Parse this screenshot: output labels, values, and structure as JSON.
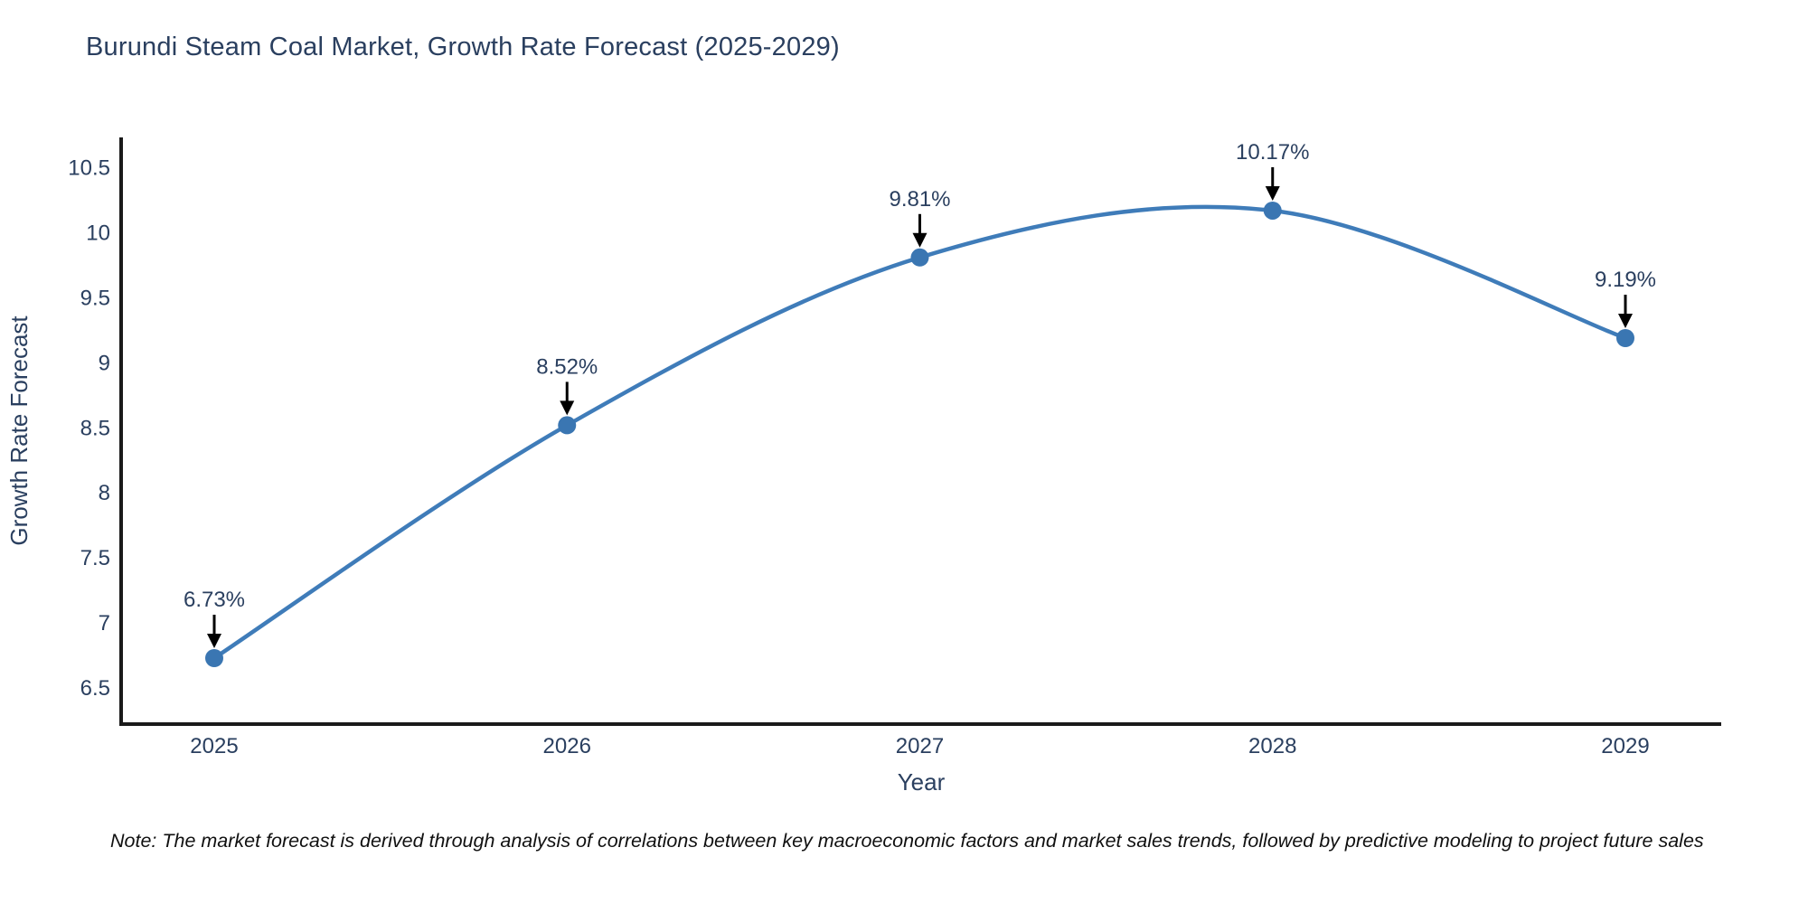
{
  "page": {
    "background": "#ffffff"
  },
  "chart_data": {
    "type": "line",
    "title": "Burundi Steam Coal Market, Growth Rate Forecast (2025-2029)",
    "xlabel": "Year",
    "ylabel": "Growth Rate Forecast",
    "x": [
      2025,
      2026,
      2027,
      2028,
      2029
    ],
    "series": [
      {
        "name": "Growth Rate Forecast",
        "values": [
          6.73,
          8.52,
          9.81,
          10.17,
          9.19
        ]
      }
    ],
    "point_labels": [
      "6.73%",
      "8.52%",
      "9.81%",
      "10.17%",
      "9.19%"
    ],
    "y_ticks": [
      6.5,
      7,
      7.5,
      8,
      8.5,
      9,
      9.5,
      10,
      10.5
    ],
    "ylim": [
      6.2,
      10.75
    ],
    "xlim": [
      2024.74,
      2029.27
    ],
    "grid": false,
    "legend_position": "none",
    "line_shape": "spline",
    "colors": {
      "line": "#3f7cb9",
      "marker": "#3a76b2",
      "axis": "#1a1a1a",
      "text": "#2a3f5f",
      "annotation_text": "#2a3f5f",
      "annotation_arrow": "#000000"
    }
  },
  "note": {
    "text": "Note: The market forecast is derived through analysis of correlations between key macroeconomic factors and market sales trends, followed by predictive modeling to project future sales"
  }
}
